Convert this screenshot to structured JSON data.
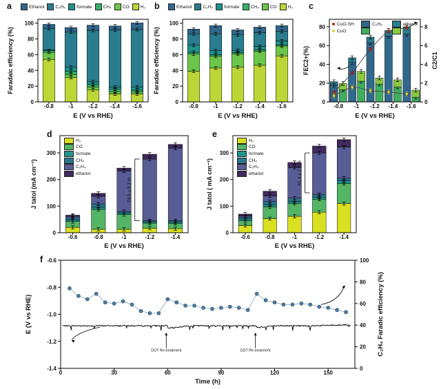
{
  "figure": {
    "background": "#ffffff"
  },
  "panels": {
    "a": {
      "label": "a"
    },
    "b": {
      "label": "b"
    },
    "c": {
      "label": "c"
    },
    "d": {
      "label": "d"
    },
    "e": {
      "label": "e"
    },
    "f": {
      "label": "f"
    }
  },
  "chart_data": [
    {
      "id": "a",
      "type": "bar",
      "stacked": true,
      "xlabel": "E (V vs RHE)",
      "ylabel": "Faradaic efficiency (%)",
      "categories": [
        "-0.8",
        "-1",
        "-1.2",
        "-1.4",
        "-1.6"
      ],
      "ylim": [
        0,
        105
      ],
      "yticks": [
        0,
        20,
        40,
        60,
        80,
        100
      ],
      "legend_reverse": true,
      "series": [
        {
          "name": "H₂",
          "color": "#bdd637",
          "values": [
            54,
            31,
            15.5,
            10,
            10
          ]
        },
        {
          "name": "CO",
          "color": "#6cc64b",
          "values": [
            9,
            4,
            3.5,
            3,
            2.5
          ]
        },
        {
          "name": "CH₄",
          "color": "#35b06a",
          "values": [
            2,
            4,
            3,
            3,
            2.5
          ]
        },
        {
          "name": "formate",
          "color": "#21918c",
          "values": [
            1,
            5,
            3.5,
            3,
            4
          ]
        },
        {
          "name": "C₂H₄",
          "color": "#2a7d8e",
          "values": [
            27,
            45,
            65.5,
            72.5,
            73
          ]
        },
        {
          "name": "Ethanol",
          "color": "#31678d",
          "values": [
            5.5,
            5.5,
            6.5,
            5,
            8.5
          ]
        }
      ]
    },
    {
      "id": "b",
      "type": "bar",
      "stacked": true,
      "xlabel": "E (V vs RHE)",
      "ylabel": "Faradaic efficiency (%)",
      "categories": [
        "-0.8",
        "-1",
        "-1.2",
        "-1.4",
        "-1.6"
      ],
      "ylim": [
        0,
        105
      ],
      "yticks": [
        0,
        20,
        40,
        60,
        80,
        100
      ],
      "legend_reverse": true,
      "series": [
        {
          "name": "H₂",
          "color": "#bdd637",
          "values": [
            39,
            43,
            44,
            46.5,
            58.5
          ]
        },
        {
          "name": "CO",
          "color": "#6cc64b",
          "values": [
            22,
            15,
            17,
            18,
            12.5
          ]
        },
        {
          "name": "CH₄",
          "color": "#35b06a",
          "values": [
            2,
            2,
            1.5,
            1.5,
            1.5
          ]
        },
        {
          "name": "formate",
          "color": "#21918c",
          "values": [
            9,
            5,
            3,
            4.5,
            5
          ]
        },
        {
          "name": "C₂H₄",
          "color": "#2a7d8e",
          "values": [
            14.5,
            21.5,
            20,
            17.5,
            12
          ]
        },
        {
          "name": "Ethanol",
          "color": "#31678d",
          "values": [
            6,
            10.5,
            6,
            7,
            7.5
          ]
        }
      ]
    },
    {
      "id": "c",
      "type": "grouped-bar-line",
      "xlabel": "E (V vs RHE)",
      "ylabel_left": "FEC2+(%)",
      "ylabel_right": "C2/C1",
      "categories": [
        "-0.8",
        "-1",
        "-1.2",
        "-1.4",
        "-1.6"
      ],
      "ylim_left": [
        0,
        88
      ],
      "yticks_left": [
        0,
        20,
        40,
        60,
        80
      ],
      "ylim_right": [
        0,
        8.8
      ],
      "yticks_right": [
        0,
        2,
        4,
        6,
        8
      ],
      "bar_series": [
        {
          "group": "CuO-SH",
          "name": "C₂H₄",
          "color": "#31688e",
          "values": [
            18,
            42,
            63,
            70,
            72
          ]
        },
        {
          "group": "CuO-SH",
          "name": "ethanol",
          "color": "#2a7d8e",
          "values": [
            3.5,
            5,
            6,
            6,
            8
          ]
        },
        {
          "group": "CuO",
          "name": "C₂H₄",
          "color": "#3fae60",
          "values": [
            13,
            22,
            19,
            16,
            5
          ]
        },
        {
          "group": "CuO",
          "name": "ethanol",
          "color": "#8ac841",
          "values": [
            6.5,
            10.5,
            6.5,
            7.5,
            7.5
          ]
        }
      ],
      "line_series": [
        {
          "name": "CuO-SH",
          "color": "#b5271d",
          "axis": "right",
          "values": [
            1.0,
            3.1,
            5.6,
            7.5,
            7.9
          ]
        },
        {
          "name": "CuO",
          "color": "#e6d22e",
          "axis": "right",
          "values": [
            0.65,
            1.55,
            1.2,
            1.05,
            0.85
          ]
        }
      ],
      "legend": {
        "dots": [
          {
            "label": "CuO-SH",
            "color": "#b5271d"
          },
          {
            "label": "CuO",
            "color": "#e6d22e"
          }
        ],
        "pairs": [
          {
            "label": "C₂H₄",
            "colors": [
              "#31688e",
              "#3fae60"
            ]
          },
          {
            "label": "ethanol",
            "colors": [
              "#2a7d8e",
              "#8ac841"
            ]
          }
        ]
      }
    },
    {
      "id": "d",
      "type": "bar",
      "stacked": true,
      "xlabel": "E (V vs RHE)",
      "ylabel": "J tatol (mA cm⁻¹)",
      "categories": [
        "-0.6",
        "-0.8",
        "-1",
        "-1.2",
        "-1.4"
      ],
      "ylim": [
        0,
        365
      ],
      "yticks": [
        0,
        100,
        200,
        300
      ],
      "legend_reverse": false,
      "series": [
        {
          "name": "H₂",
          "color": "#d9e021",
          "values": [
            20,
            13,
            13,
            17,
            15
          ]
        },
        {
          "name": "CO",
          "color": "#54b567",
          "values": [
            22,
            75,
            55,
            19,
            20
          ]
        },
        {
          "name": "formate",
          "color": "#20938c",
          "values": [
            6,
            8,
            6,
            5,
            5
          ]
        },
        {
          "name": "CH₄",
          "color": "#2a768e",
          "values": [
            7,
            12,
            6,
            4,
            5
          ]
        },
        {
          "name": "C₂H₄",
          "color": "#585d96",
          "values": [
            7,
            29,
            152,
            232,
            273
          ]
        },
        {
          "name": "ethanol",
          "color": "#402a5e",
          "values": [
            4,
            11,
            11,
            18,
            14
          ]
        }
      ],
      "annotation": {
        "text": "74.5 ± 5.2 %",
        "y1": 45,
        "y2": 277,
        "cat": 3
      }
    },
    {
      "id": "e",
      "type": "bar",
      "stacked": true,
      "xlabel": "E (V vs RHE)",
      "ylabel": "J tatol ( mA cm⁻²)",
      "categories": [
        "-0.6",
        "-0.8",
        "-1",
        "-1.2",
        "-1.4"
      ],
      "ylim": [
        0,
        365
      ],
      "yticks": [
        0,
        100,
        200,
        300
      ],
      "legend_reverse": false,
      "series": [
        {
          "name": "H₂",
          "color": "#d9e021",
          "values": [
            27,
            53,
            62,
            77,
            110
          ]
        },
        {
          "name": "CO",
          "color": "#54b567",
          "values": [
            18,
            44,
            48,
            49,
            75
          ]
        },
        {
          "name": "formate",
          "color": "#20938c",
          "values": [
            7,
            9,
            8,
            8,
            10
          ]
        },
        {
          "name": "CH₄",
          "color": "#2a768e",
          "values": [
            6,
            11,
            12,
            9,
            10
          ]
        },
        {
          "name": "C₂H₄",
          "color": "#585d96",
          "values": [
            5,
            21,
            115,
            157,
            117
          ]
        },
        {
          "name": "ethanol",
          "color": "#402a5e",
          "values": [
            7,
            18,
            19,
            26,
            28
          ]
        }
      ],
      "annotation": {
        "text": "41.4 ± 2.6 %",
        "y1": 150,
        "y2": 300,
        "cat": 3
      }
    },
    {
      "id": "f",
      "type": "line",
      "xlabel": "Time (h)",
      "xlim": [
        0,
        165
      ],
      "xticks": [
        0,
        30,
        60,
        90,
        120,
        150
      ],
      "ylabel_left": "E (V vs RHE)",
      "ylim_left": [
        -1.4,
        -0.6
      ],
      "yticks_left": [
        -0.6,
        -0.8,
        -1.0,
        -1.2,
        -1.4
      ],
      "ylabel_right": "C₂H₄ Faradic efficiency (%)",
      "ylim_right": [
        0,
        100
      ],
      "yticks_right": [
        0,
        20,
        40,
        60,
        80,
        100
      ],
      "fe_series": {
        "name": "C₂H₄ Faradic efficiency",
        "color": "#4f81a8",
        "t": [
          5,
          10,
          15,
          20,
          25,
          30,
          35,
          40,
          45,
          50,
          55,
          60,
          65,
          70,
          75,
          80,
          85,
          90,
          95,
          100,
          105,
          110,
          115,
          120,
          125,
          130,
          135,
          140,
          145,
          150,
          155,
          160
        ],
        "values": [
          74,
          67,
          64,
          69,
          61,
          60,
          62,
          59,
          53,
          51,
          51,
          64,
          61,
          58,
          58,
          56,
          55,
          56,
          57,
          56,
          54,
          69,
          63,
          61,
          59,
          59,
          60,
          59,
          57,
          56,
          54,
          52
        ]
      },
      "potential_series": {
        "name": "E (V vs RHE)",
        "color": "#000000",
        "base_V": -1.085,
        "dip_times_h": [
          60,
          110
        ]
      },
      "annotations": [
        {
          "text": "DDT Re-treatment",
          "t": 60
        },
        {
          "text": "DDT Re-treatment",
          "t": 110
        }
      ]
    }
  ]
}
